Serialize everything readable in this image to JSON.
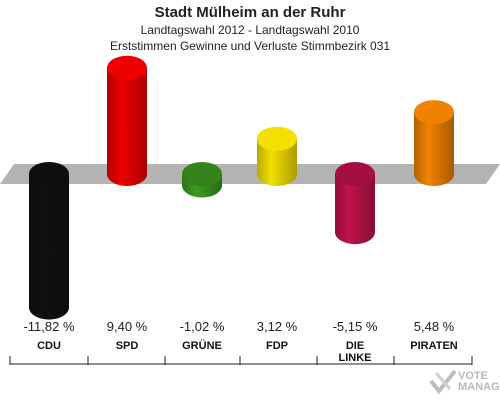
{
  "header": {
    "title": "Stadt Mülheim an der Ruhr",
    "subtitle": "Landtagswahl 2012 - Landtagswahl 2010",
    "subtitle2": "Erststimmen Gewinne und Verluste Stimmbezirk 031"
  },
  "chart_data": {
    "type": "bar",
    "title": "Stadt Mülheim an der Ruhr",
    "subtitle": "Landtagswahl 2012 - Landtagswahl 2010 / Erststimmen Gewinne und Verluste Stimmbezirk 031",
    "categories": [
      "CDU",
      "SPD",
      "GRÜNE",
      "FDP",
      "DIE\nLINKE",
      "PIRATEN"
    ],
    "values": [
      -11.82,
      9.4,
      -1.02,
      3.12,
      -5.15,
      5.48
    ],
    "value_labels": [
      "-11,82 %",
      "9,40 %",
      "-1,02 %",
      "3,12 %",
      "-5,15 %",
      "5,48 %"
    ],
    "colors": [
      "#111111",
      "#ee0000",
      "#3c9a1e",
      "#f4e000",
      "#c0134a",
      "#f08200"
    ],
    "xlabel": "",
    "ylabel": "",
    "ylim": [
      -12,
      10
    ],
    "grid": false,
    "legend": "none"
  },
  "watermark": {
    "line1": "VOTE",
    "line2": "MANAGER"
  }
}
